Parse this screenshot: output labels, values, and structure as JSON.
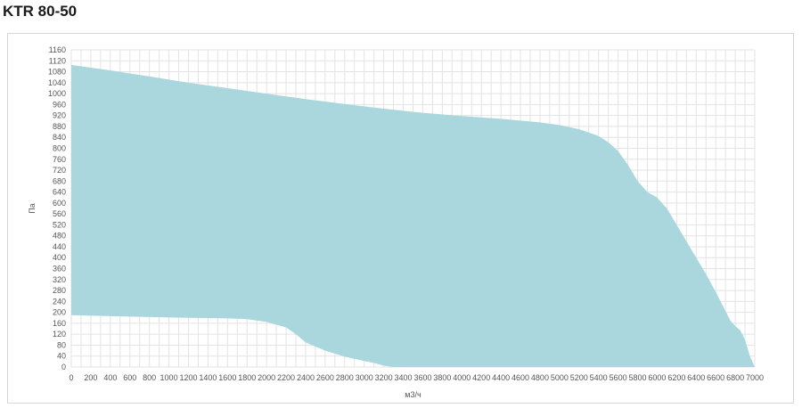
{
  "header": {
    "title": "KTR 80-50"
  },
  "colors": {
    "area_fill": "#aad7de",
    "grid": "#e3e3e3"
  },
  "chart_data": {
    "type": "area",
    "title": "KTR 80-50",
    "xlabel": "м3/ч",
    "ylabel": "Па",
    "xlim": [
      0,
      7000
    ],
    "ylim": [
      0,
      1160
    ],
    "xticks": [
      0,
      200,
      400,
      600,
      800,
      1000,
      1200,
      1400,
      1600,
      1800,
      2000,
      2200,
      2400,
      2600,
      2800,
      3000,
      3200,
      3400,
      3600,
      3800,
      4000,
      4200,
      4400,
      4600,
      4800,
      5000,
      5200,
      5400,
      5600,
      5800,
      6000,
      6200,
      6400,
      6600,
      6800,
      7000
    ],
    "yticks": [
      0,
      40,
      80,
      120,
      160,
      200,
      240,
      280,
      320,
      360,
      400,
      440,
      480,
      520,
      560,
      600,
      640,
      680,
      720,
      760,
      800,
      840,
      880,
      920,
      960,
      1000,
      1040,
      1080,
      1120,
      1160
    ],
    "grid": true,
    "legend": "none",
    "series": [
      {
        "role": "upper_boundary",
        "x": [
          0,
          400,
          800,
          1200,
          1600,
          2000,
          2400,
          2800,
          3200,
          3600,
          4000,
          4400,
          4800,
          5000,
          5200,
          5400,
          5500,
          5600,
          5700,
          5800,
          5900,
          6000,
          6100,
          6200,
          6300,
          6400,
          6500,
          6600,
          6700,
          6750,
          6800,
          6850,
          6900,
          6950,
          7000
        ],
        "y": [
          1105,
          1085,
          1063,
          1040,
          1020,
          1000,
          980,
          962,
          945,
          930,
          918,
          908,
          895,
          885,
          870,
          845,
          822,
          790,
          740,
          680,
          640,
          620,
          580,
          520,
          460,
          400,
          340,
          275,
          205,
          170,
          150,
          135,
          100,
          40,
          0
        ]
      },
      {
        "role": "lower_boundary",
        "x": [
          0,
          400,
          800,
          1200,
          1600,
          1800,
          2000,
          2200,
          2300,
          2400,
          2600,
          2800,
          3000,
          3100,
          3200,
          3300,
          7000
        ],
        "y": [
          190,
          186,
          183,
          180,
          178,
          175,
          165,
          145,
          120,
          90,
          60,
          38,
          22,
          15,
          5,
          0,
          0
        ]
      }
    ]
  }
}
